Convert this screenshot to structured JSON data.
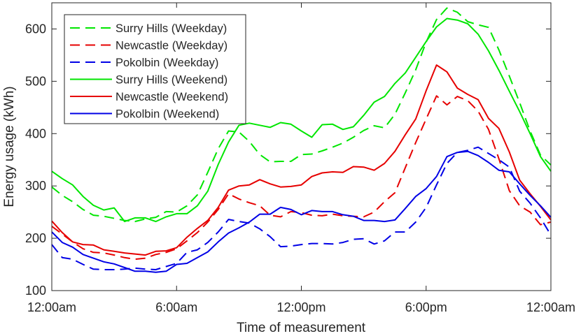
{
  "chart_data": {
    "type": "line",
    "title": "",
    "xlabel": "Time of measurement",
    "ylabel": "Energy usage (kWh)",
    "xlim": [
      0,
      24
    ],
    "ylim": [
      100,
      650
    ],
    "x_ticks": [
      {
        "value": 0,
        "label": "12:00am"
      },
      {
        "value": 6,
        "label": "6:00am"
      },
      {
        "value": 12,
        "label": "12:00pm"
      },
      {
        "value": 18,
        "label": "6:00pm"
      },
      {
        "value": 24,
        "label": "12:00am"
      }
    ],
    "y_ticks": [
      {
        "value": 100,
        "label": "100"
      },
      {
        "value": 200,
        "label": "200"
      },
      {
        "value": 300,
        "label": "300"
      },
      {
        "value": 400,
        "label": "400"
      },
      {
        "value": 500,
        "label": "500"
      },
      {
        "value": 600,
        "label": "600"
      }
    ],
    "legend_position": "top-left",
    "x": [
      0,
      0.5,
      1,
      1.5,
      2,
      2.5,
      3,
      3.5,
      4,
      4.5,
      5,
      5.5,
      6,
      6.5,
      7,
      7.5,
      8,
      8.5,
      9,
      9.5,
      10,
      10.5,
      11,
      11.5,
      12,
      12.5,
      13,
      13.5,
      14,
      14.5,
      15,
      15.5,
      16,
      16.5,
      17,
      17.5,
      18,
      18.5,
      19,
      19.5,
      20,
      20.5,
      21,
      21.5,
      22,
      22.5,
      23,
      23.5,
      24
    ],
    "series": [
      {
        "name": "Surry Hills (Weekday)",
        "color": "#00e600",
        "dash": true,
        "values": [
          298,
          282,
          270,
          255,
          244,
          242,
          238,
          234,
          232,
          237,
          240,
          251,
          250,
          262,
          283,
          326,
          371,
          405,
          403,
          385,
          360,
          346,
          347,
          347,
          360,
          361,
          367,
          374,
          382,
          393,
          406,
          415,
          411,
          437,
          478,
          522,
          575,
          618,
          640,
          632,
          614,
          608,
          603,
          560,
          510,
          459,
          405,
          359,
          340
        ]
      },
      {
        "name": "Newcastle (Weekday)",
        "color": "#e60000",
        "dash": true,
        "values": [
          223,
          208,
          193,
          180,
          173,
          172,
          168,
          163,
          160,
          162,
          169,
          173,
          180,
          195,
          211,
          231,
          255,
          285,
          275,
          268,
          262,
          244,
          241,
          251,
          249,
          244,
          243,
          246,
          243,
          242,
          241,
          250,
          270,
          287,
          335,
          383,
          428,
          472,
          455,
          471,
          463,
          443,
          408,
          352,
          291,
          262,
          250,
          226,
          231
        ]
      },
      {
        "name": "Pokolbin (Weekday)",
        "color": "#0000e6",
        "dash": true,
        "values": [
          188,
          163,
          160,
          150,
          141,
          140,
          140,
          141,
          143,
          141,
          140,
          146,
          152,
          173,
          178,
          192,
          212,
          236,
          232,
          229,
          218,
          203,
          184,
          185,
          188,
          190,
          190,
          189,
          192,
          198,
          199,
          189,
          195,
          212,
          212,
          231,
          259,
          302,
          343,
          364,
          368,
          374,
          362,
          350,
          336,
          290,
          267,
          239,
          206
        ]
      },
      {
        "name": "Surry Hills (Weekend)",
        "color": "#00e600",
        "dash": false,
        "values": [
          328,
          314,
          302,
          280,
          263,
          254,
          258,
          232,
          239,
          239,
          232,
          241,
          247,
          247,
          262,
          290,
          341,
          384,
          416,
          420,
          416,
          412,
          421,
          418,
          405,
          393,
          417,
          418,
          408,
          413,
          435,
          460,
          471,
          496,
          516,
          546,
          576,
          604,
          620,
          617,
          610,
          590,
          558,
          521,
          481,
          442,
          400,
          356,
          328
        ]
      },
      {
        "name": "Newcastle (Weekend)",
        "color": "#e60000",
        "dash": false,
        "values": [
          233,
          211,
          193,
          188,
          187,
          178,
          175,
          172,
          170,
          168,
          175,
          176,
          182,
          202,
          219,
          234,
          259,
          292,
          300,
          302,
          312,
          304,
          298,
          299,
          302,
          318,
          325,
          327,
          326,
          337,
          336,
          330,
          343,
          366,
          398,
          428,
          482,
          531,
          518,
          487,
          475,
          465,
          429,
          410,
          365,
          311,
          285,
          261,
          235
        ]
      },
      {
        "name": "Pokolbin (Weekend)",
        "color": "#0000e6",
        "dash": false,
        "values": [
          212,
          192,
          183,
          169,
          162,
          155,
          151,
          144,
          137,
          137,
          135,
          137,
          150,
          152,
          163,
          174,
          193,
          210,
          220,
          231,
          246,
          246,
          259,
          255,
          245,
          253,
          251,
          251,
          245,
          242,
          234,
          234,
          232,
          235,
          257,
          280,
          295,
          318,
          356,
          364,
          366,
          358,
          345,
          330,
          327,
          304,
          282,
          262,
          240
        ]
      }
    ]
  }
}
